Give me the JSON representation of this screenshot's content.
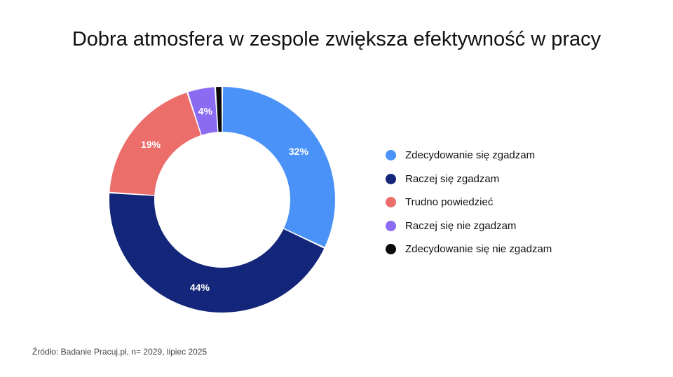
{
  "title": "Dobra atmosfera w zespole zwiększa efektywność w pracy",
  "source": "Źródło: Badanie Pracuj.pl, n= 2029, lipiec 2025",
  "chart_data": {
    "type": "pie",
    "variant": "donut",
    "title": "Dobra atmosfera w zespole zwiększa efektywność w pracy",
    "categories": [
      "Zdecydowanie się zgadzam",
      "Raczej się zgadzam",
      "Trudno powiedzieć",
      "Raczej się nie zgadzam",
      "Zdecydowanie się nie zgadzam"
    ],
    "values": [
      32,
      44,
      19,
      4,
      1
    ],
    "labels": [
      "32%",
      "44%",
      "19%",
      "4%",
      ""
    ],
    "colors": [
      "#4A92F7",
      "#14267A",
      "#EB6E6B",
      "#8A6BF2",
      "#0A0A0A"
    ],
    "legend_position": "right"
  }
}
